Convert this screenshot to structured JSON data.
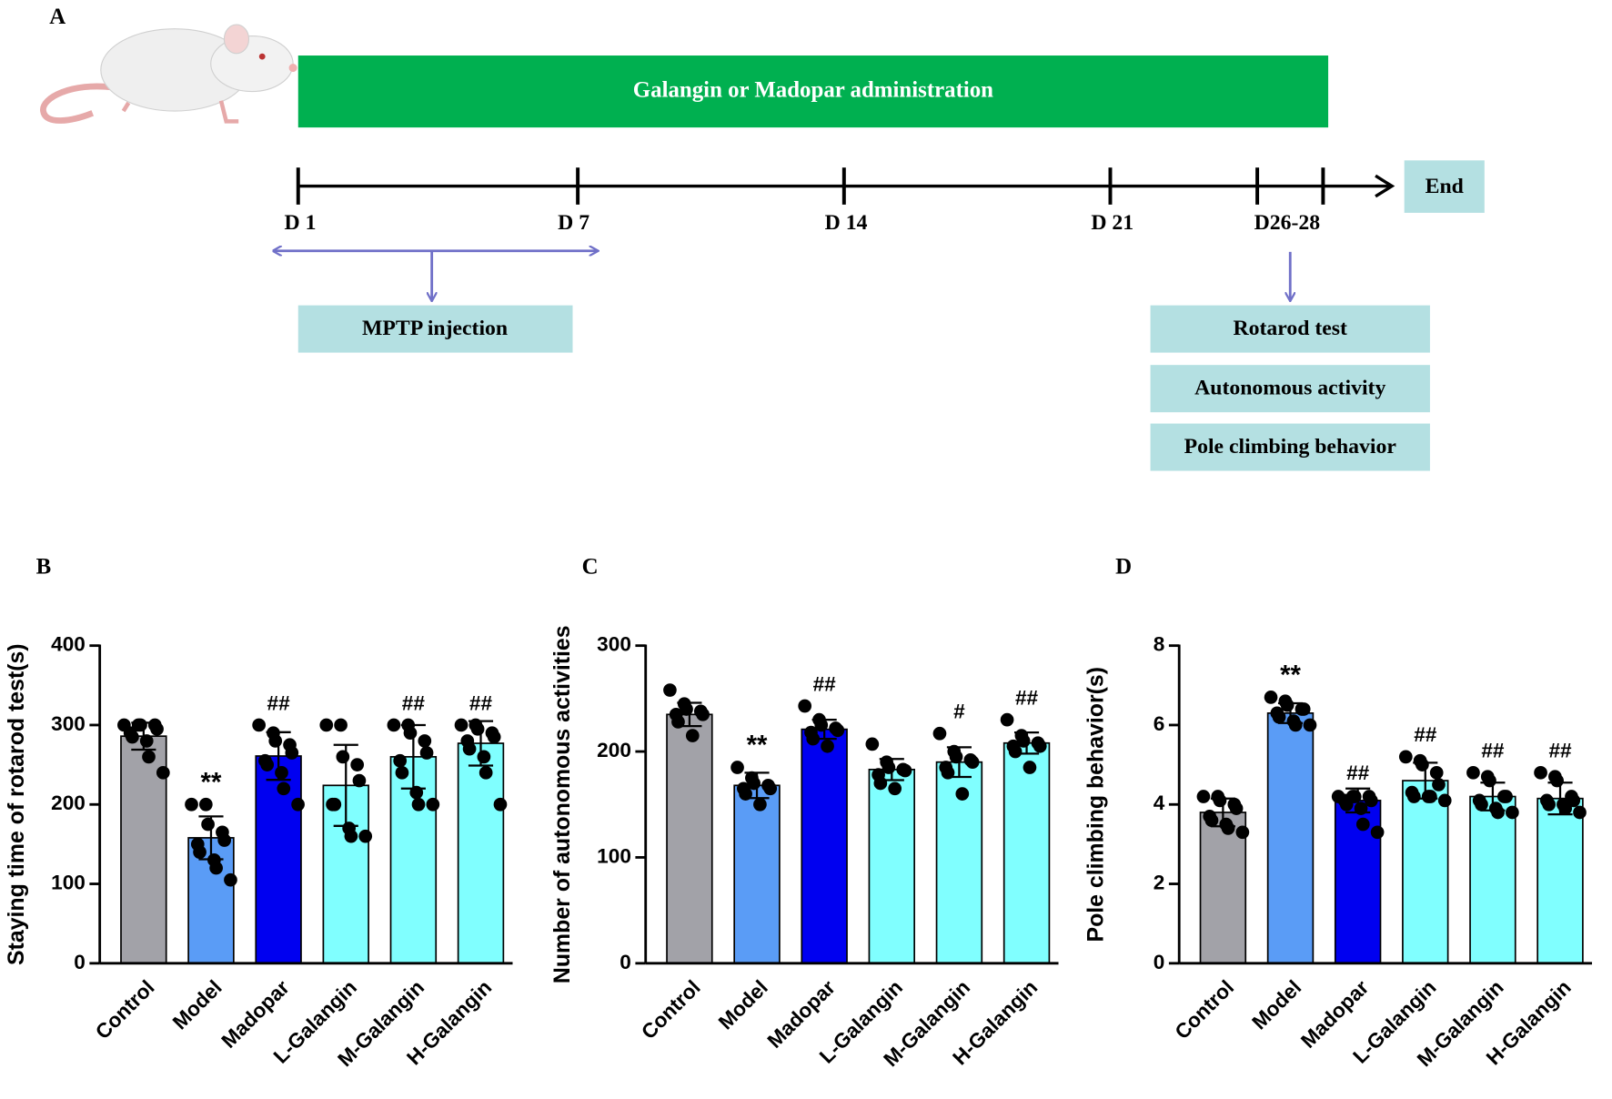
{
  "timeline": {
    "panel_label": "A",
    "administration": "Galangin or Madopar administration",
    "ticks": [
      "D 1",
      "D 7",
      "D 14",
      "D 21",
      "D26-28"
    ],
    "end": "End",
    "injection": "MPTP injection",
    "tests": [
      "Rotarod test",
      "Autonomous activity",
      "Pole climbing behavior"
    ]
  },
  "chart_data": [
    {
      "type": "bar",
      "panel_label": "B",
      "ylabel": "Staying time of rotarod test(s)",
      "categories": [
        "Control",
        "Model",
        "Madopar",
        "L-Galangin",
        "M-Galangin",
        "H-Galangin"
      ],
      "colors": [
        "#a2a2a8",
        "#5a9cf6",
        "#0000f0",
        "#80ffff",
        "#80ffff",
        "#80ffff"
      ],
      "values": [
        286,
        158,
        261,
        224,
        260,
        277
      ],
      "errors": [
        17,
        27,
        30,
        51,
        40,
        28
      ],
      "annotations": [
        null,
        "**",
        "##",
        null,
        "##",
        "##"
      ],
      "points": [
        [
          300,
          300,
          300,
          300,
          295,
          290,
          285,
          280,
          260,
          240
        ],
        [
          200,
          200,
          175,
          165,
          155,
          150,
          140,
          130,
          120,
          105
        ],
        [
          300,
          290,
          280,
          275,
          265,
          255,
          250,
          240,
          220,
          200
        ],
        [
          300,
          300,
          260,
          250,
          230,
          200,
          200,
          170,
          160,
          160
        ],
        [
          300,
          300,
          290,
          280,
          265,
          255,
          240,
          215,
          200,
          200
        ],
        [
          300,
          300,
          295,
          290,
          285,
          280,
          270,
          260,
          240,
          200
        ]
      ],
      "ylim": [
        0,
        400
      ],
      "yticks": [
        0,
        100,
        200,
        300,
        400
      ]
    },
    {
      "type": "bar",
      "panel_label": "C",
      "ylabel": "Number of autonomous activities",
      "categories": [
        "Control",
        "Model",
        "Madopar",
        "L-Galangin",
        "M-Galangin",
        "H-Galangin"
      ],
      "colors": [
        "#a2a2a8",
        "#5a9cf6",
        "#0000f0",
        "#80ffff",
        "#80ffff",
        "#80ffff"
      ],
      "values": [
        235,
        168,
        221,
        183,
        190,
        208
      ],
      "errors": [
        11,
        12,
        9,
        10,
        14,
        10
      ],
      "annotations": [
        null,
        "**",
        "##",
        null,
        "#",
        "##"
      ],
      "points": [
        [
          258,
          245,
          240,
          238,
          235,
          235,
          228,
          215
        ],
        [
          185,
          175,
          170,
          168,
          165,
          165,
          160,
          150
        ],
        [
          243,
          230,
          225,
          222,
          220,
          218,
          212,
          205
        ],
        [
          207,
          190,
          185,
          183,
          182,
          178,
          170,
          165
        ],
        [
          217,
          200,
          195,
          192,
          190,
          185,
          180,
          160
        ],
        [
          230,
          215,
          210,
          208,
          205,
          205,
          200,
          185
        ]
      ],
      "ylim": [
        0,
        300
      ],
      "yticks": [
        0,
        100,
        200,
        300
      ]
    },
    {
      "type": "bar",
      "panel_label": "D",
      "ylabel": "Pole climbing behavior(s)",
      "categories": [
        "Control",
        "Model",
        "Madopar",
        "L-Galangin",
        "M-Galangin",
        "H-Galangin"
      ],
      "colors": [
        "#a2a2a8",
        "#5a9cf6",
        "#0000f0",
        "#80ffff",
        "#80ffff",
        "#80ffff"
      ],
      "values": [
        3.8,
        6.3,
        4.1,
        4.6,
        4.2,
        4.15
      ],
      "errors": [
        0.35,
        0.25,
        0.3,
        0.45,
        0.35,
        0.4
      ],
      "annotations": [
        null,
        "**",
        "##",
        "##",
        "##",
        "##"
      ],
      "points": [
        [
          4.2,
          4.2,
          4.1,
          4.0,
          3.9,
          3.7,
          3.6,
          3.5,
          3.4,
          3.3
        ],
        [
          6.7,
          6.6,
          6.5,
          6.4,
          6.4,
          6.3,
          6.2,
          6.1,
          6.0,
          6.0
        ],
        [
          4.2,
          4.2,
          4.2,
          4.2,
          4.1,
          4.1,
          4.0,
          3.9,
          3.5,
          3.3
        ],
        [
          5.2,
          5.1,
          5.0,
          4.8,
          4.5,
          4.3,
          4.2,
          4.2,
          4.2,
          4.1
        ],
        [
          4.8,
          4.7,
          4.6,
          4.2,
          4.2,
          4.1,
          4.0,
          3.9,
          3.8,
          3.8
        ],
        [
          4.8,
          4.7,
          4.6,
          4.2,
          4.1,
          4.1,
          4.0,
          4.0,
          3.9,
          3.8
        ]
      ],
      "ylim": [
        0,
        8
      ],
      "yticks": [
        0,
        2,
        4,
        6,
        8
      ]
    }
  ]
}
